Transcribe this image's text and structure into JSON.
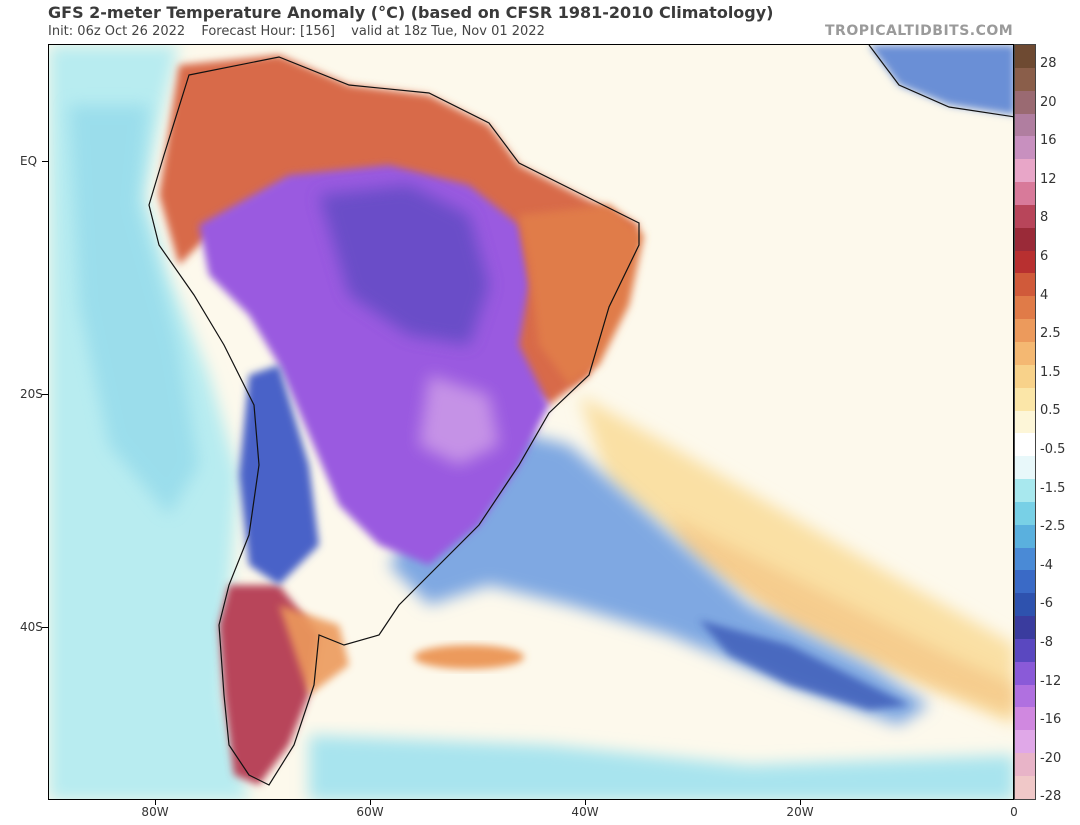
{
  "title": "GFS 2-meter Temperature Anomaly (°C) (based on CFSR 1981-2010 Climatology)",
  "init": "Init: 06z Oct 26 2022",
  "forecast": "Forecast Hour: [156]",
  "valid": "valid at 18z Tue, Nov 01 2022",
  "brand": "TROPICALTIDBITS.COM",
  "lat_labels": [
    "EQ",
    "20S",
    "40S"
  ],
  "lon_labels": [
    "80W",
    "60W",
    "40W",
    "20W",
    "0"
  ],
  "colorbar": {
    "labels": [
      "28",
      "20",
      "16",
      "12",
      "8",
      "6",
      "4",
      "2.5",
      "1.5",
      "0.5",
      "-0.5",
      "-1.5",
      "-2.5",
      "-4",
      "-6",
      "-8",
      "-12",
      "-16",
      "-20",
      "-28"
    ],
    "colors": [
      "#6e4a32",
      "#8a5e4a",
      "#9a6a72",
      "#b07ea0",
      "#c890bf",
      "#e8a6c8",
      "#d87a9a",
      "#b8455a",
      "#9a2a38",
      "#b83030",
      "#d05a3a",
      "#e07b48",
      "#ec9a5c",
      "#f4b872",
      "#f8d28a",
      "#fbe6a8",
      "#fdf6d8",
      "#ffffff",
      "#e8f8fa",
      "#a8e8ee",
      "#78d0e6",
      "#5ab0de",
      "#4a8ad6",
      "#3a6ac6",
      "#2e52ae",
      "#3a3c9e",
      "#5a48c0",
      "#8a5ad8",
      "#b070e0",
      "#d088e0",
      "#e0a8e8",
      "#e8b4c8",
      "#f0c8c8"
    ],
    "note": "colors ordered top to bottom"
  },
  "colors": {
    "ocean_neutral": "#fdf9ec",
    "ocean_warm": "#fae0a4",
    "ocean_cool": "#b8ecf0",
    "cold_strong": "#9a5ae0",
    "cold_mid": "#4a62c8",
    "warm": "#d86a4a",
    "warm_strong": "#a8485a"
  }
}
